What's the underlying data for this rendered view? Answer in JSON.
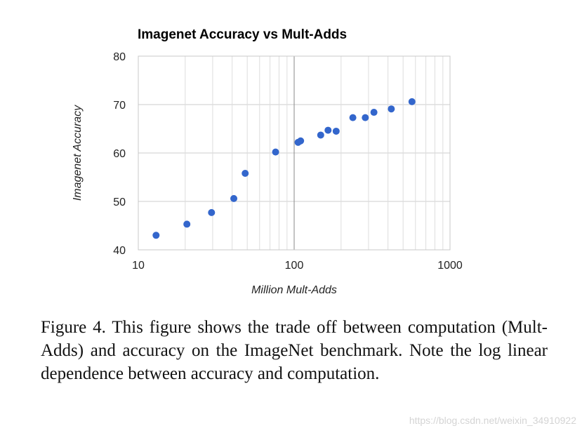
{
  "chart_data": {
    "type": "scatter",
    "title": "Imagenet Accuracy vs Mult-Adds",
    "xlabel": "Million Mult-Adds",
    "ylabel": "Imagenet Accuracy",
    "xscale": "log",
    "xlim": [
      10,
      1000
    ],
    "ylim": [
      40,
      80
    ],
    "xticks": [
      10,
      100,
      1000
    ],
    "xtick_labels": [
      "10",
      "100",
      "1000"
    ],
    "yticks": [
      40,
      50,
      60,
      70,
      80
    ],
    "ytick_labels": [
      "40",
      "50",
      "60",
      "70",
      "80"
    ],
    "grid": true,
    "legend": "none",
    "marker_color": "#3366cc",
    "x": [
      13,
      20.5,
      29.5,
      41,
      48.5,
      76,
      106,
      110,
      148,
      165,
      186,
      238,
      286,
      325,
      420,
      570
    ],
    "y": [
      43,
      45.3,
      47.7,
      50.6,
      55.8,
      60.2,
      62.2,
      62.5,
      63.7,
      64.7,
      64.5,
      67.3,
      67.3,
      68.4,
      69.1,
      70.6
    ]
  },
  "caption": "Figure 4. This figure shows the trade off between computation (Mult-Adds) and accuracy on the ImageNet benchmark. Note the log linear dependence between accuracy and computation.",
  "watermark": "https://blog.csdn.net/weixin_34910922"
}
